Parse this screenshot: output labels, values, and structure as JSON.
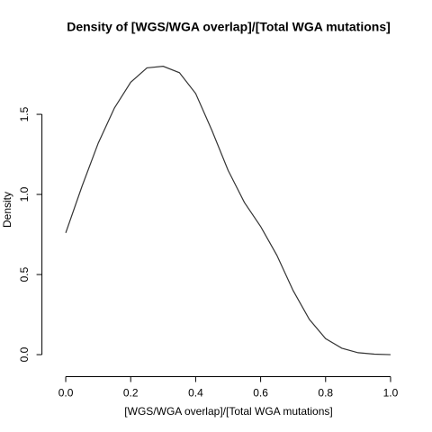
{
  "chart_data": {
    "type": "line",
    "title": "Density of [WGS/WGA overlap]/[Total WGA mutations]",
    "x_label": "[WGS/WGA overlap]/[Total WGA mutations]",
    "y_label": "Density",
    "x": [
      0.0,
      0.05,
      0.1,
      0.15,
      0.2,
      0.25,
      0.3,
      0.35,
      0.4,
      0.45,
      0.5,
      0.55,
      0.6,
      0.65,
      0.7,
      0.75,
      0.8,
      0.85,
      0.9,
      0.95,
      1.0
    ],
    "series": [
      {
        "name": "density",
        "color": "#333333",
        "values": [
          0.76,
          1.05,
          1.32,
          1.54,
          1.7,
          1.79,
          1.8,
          1.76,
          1.63,
          1.4,
          1.15,
          0.95,
          0.8,
          0.62,
          0.4,
          0.22,
          0.1,
          0.04,
          0.012,
          0.003,
          0.0
        ]
      }
    ],
    "xlim": [
      -0.04,
      1.04
    ],
    "ylim": [
      -0.07,
      1.88
    ],
    "xticks": [
      {
        "value": 0,
        "label": "0.0"
      },
      0.2,
      0.4,
      0.6,
      0.8,
      {
        "value": 1,
        "label": "1.0"
      }
    ],
    "yticks": [
      {
        "value": 0,
        "label": "0.0"
      },
      0.5,
      {
        "value": 1,
        "label": "1.0"
      },
      1.5
    ]
  }
}
